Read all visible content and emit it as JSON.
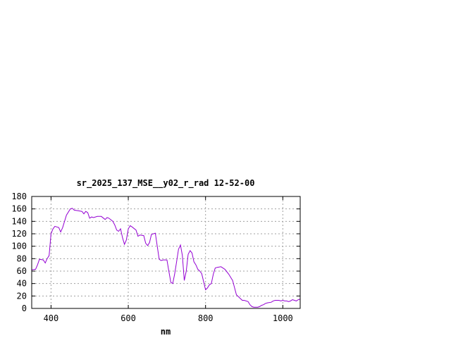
{
  "chart_data": {
    "type": "line",
    "title": "sr_2025_137_MSE__y02_r_rad 12-52-00",
    "xlabel": "nm",
    "ylabel": "",
    "xlim": [
      350,
      1045
    ],
    "ylim": [
      0,
      180
    ],
    "xticks": [
      400,
      600,
      800,
      1000
    ],
    "yticks": [
      0,
      20,
      40,
      60,
      80,
      100,
      120,
      140,
      160,
      180
    ],
    "grid": true,
    "legend": "none",
    "series": [
      {
        "color": "#9400d3",
        "x": [
          350,
          360,
          365,
          370,
          380,
          385,
          390,
          395,
          400,
          405,
          410,
          420,
          425,
          430,
          440,
          450,
          455,
          460,
          470,
          480,
          485,
          490,
          495,
          500,
          505,
          510,
          520,
          530,
          540,
          545,
          550,
          560,
          565,
          570,
          575,
          580,
          585,
          590,
          595,
          600,
          605,
          610,
          620,
          625,
          630,
          640,
          645,
          650,
          655,
          660,
          670,
          680,
          685,
          690,
          700,
          705,
          710,
          715,
          720,
          725,
          730,
          735,
          740,
          745,
          750,
          755,
          760,
          765,
          770,
          775,
          780,
          785,
          790,
          800,
          805,
          810,
          815,
          820,
          825,
          830,
          840,
          850,
          860,
          870,
          880,
          890,
          895,
          900,
          910,
          915,
          920,
          925,
          930,
          935,
          940,
          945,
          950,
          955,
          960,
          970,
          975,
          980,
          990,
          995,
          1000,
          1005,
          1010,
          1015,
          1020,
          1025,
          1030,
          1035,
          1040,
          1045
        ],
        "y": [
          62,
          63,
          70,
          79,
          78,
          73,
          80,
          85,
          120,
          128,
          132,
          130,
          123,
          130,
          150,
          160,
          161,
          158,
          157,
          156,
          152,
          156,
          154,
          145,
          147,
          146,
          148,
          148,
          143,
          146,
          145,
          140,
          134,
          126,
          124,
          128,
          114,
          103,
          110,
          128,
          133,
          131,
          126,
          116,
          118,
          117,
          105,
          101,
          106,
          119,
          121,
          79,
          77,
          78,
          78,
          60,
          42,
          40,
          55,
          75,
          95,
          102,
          85,
          45,
          60,
          87,
          93,
          89,
          75,
          70,
          63,
          60,
          56,
          30,
          33,
          38,
          40,
          55,
          65,
          66,
          67,
          63,
          55,
          45,
          22,
          16,
          13,
          13,
          11,
          6,
          3,
          2,
          2,
          2,
          3,
          5,
          6,
          8,
          9,
          10,
          12,
          13,
          13,
          12,
          13,
          12,
          12,
          11,
          12,
          14,
          13,
          12,
          14,
          15
        ]
      }
    ]
  }
}
